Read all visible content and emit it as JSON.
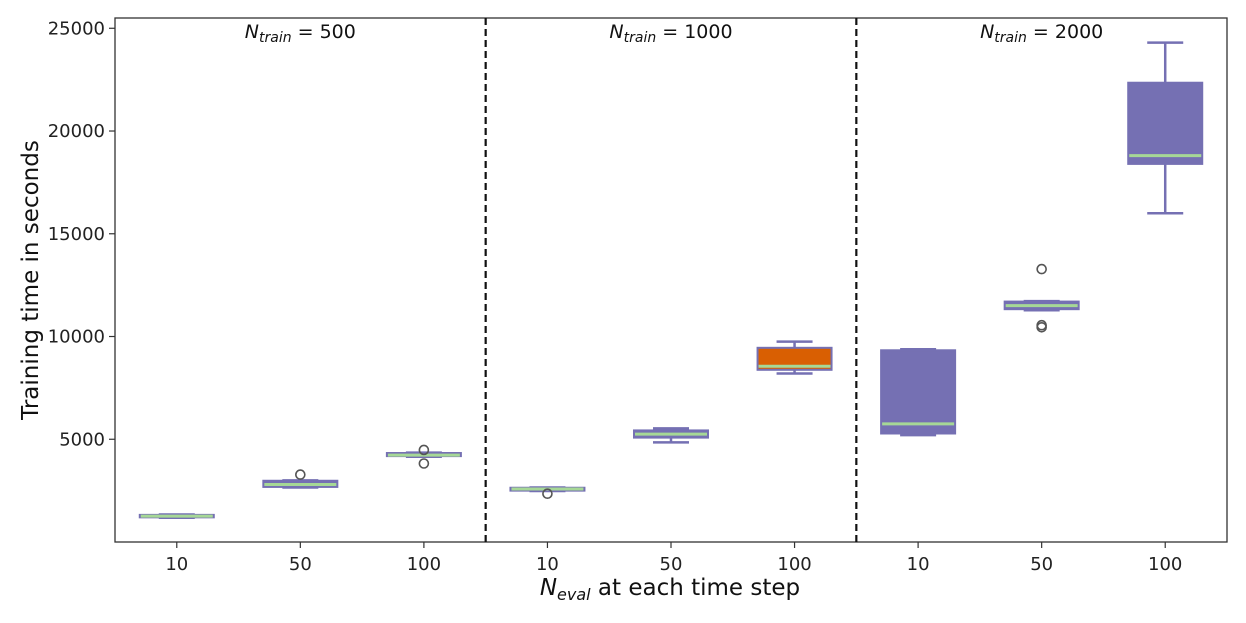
{
  "colors": {
    "box_fill": "#7570b3",
    "box_highlight_fill": "#d95f02",
    "box_edge": "#7570b3",
    "median": "#a6d896",
    "outlier": "#555555",
    "divider": "#111111"
  },
  "chart_data": {
    "type": "box",
    "xlabel": {
      "main": "N",
      "sub": "eval",
      "rest": " at each time step"
    },
    "ylabel": "Training time in seconds",
    "ylim": [
      0,
      25500
    ],
    "yticks": [
      5000,
      10000,
      15000,
      20000,
      25000
    ],
    "grid": false,
    "panels": [
      {
        "label": {
          "main": "N",
          "sub": "train",
          "rest": " = 500"
        },
        "groups": [
          {
            "category": "10",
            "whisker_low": 1180,
            "q1": 1200,
            "median": 1260,
            "q3": 1320,
            "whisker_high": 1340,
            "outliers": [],
            "highlight": false
          },
          {
            "category": "50",
            "whisker_low": 2650,
            "q1": 2680,
            "median": 2800,
            "q3": 2980,
            "whisker_high": 3000,
            "outliers": [
              3280
            ],
            "highlight": false
          },
          {
            "category": "100",
            "whisker_low": 4150,
            "q1": 4180,
            "median": 4230,
            "q3": 4330,
            "whisker_high": 4350,
            "outliers": [
              4480,
              3820
            ],
            "highlight": false
          }
        ]
      },
      {
        "label": {
          "main": "N",
          "sub": "train",
          "rest": " = 1000"
        },
        "groups": [
          {
            "category": "10",
            "whisker_low": 2480,
            "q1": 2500,
            "median": 2580,
            "q3": 2640,
            "whisker_high": 2650,
            "outliers": [
              2350
            ],
            "highlight": false
          },
          {
            "category": "50",
            "whisker_low": 4850,
            "q1": 5080,
            "median": 5250,
            "q3": 5430,
            "whisker_high": 5530,
            "outliers": [],
            "highlight": false
          },
          {
            "category": "100",
            "whisker_low": 8200,
            "q1": 8380,
            "median": 8550,
            "q3": 9450,
            "whisker_high": 9750,
            "outliers": [],
            "highlight": true
          }
        ]
      },
      {
        "label": {
          "main": "N",
          "sub": "train",
          "rest": " = 2000"
        },
        "groups": [
          {
            "category": "10",
            "whisker_low": 5200,
            "q1": 5280,
            "median": 5750,
            "q3": 9330,
            "whisker_high": 9380,
            "outliers": [],
            "highlight": false
          },
          {
            "category": "50",
            "whisker_low": 11280,
            "q1": 11330,
            "median": 11500,
            "q3": 11700,
            "whisker_high": 11720,
            "outliers": [
              13280,
              10550,
              10450
            ],
            "highlight": false
          },
          {
            "category": "100",
            "whisker_low": 16000,
            "q1": 18400,
            "median": 18800,
            "q3": 22350,
            "whisker_high": 24300,
            "outliers": [],
            "highlight": false
          }
        ]
      }
    ]
  }
}
